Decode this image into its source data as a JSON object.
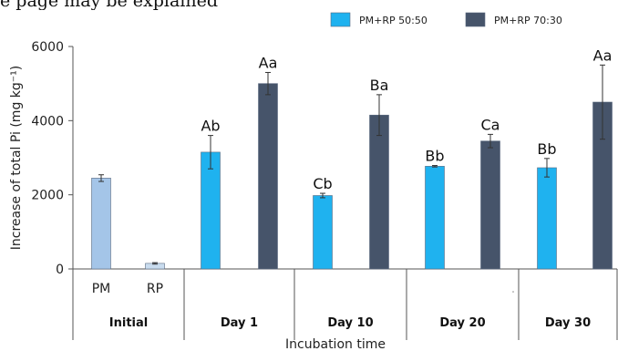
{
  "caption_fragment": "e page may be explained",
  "chart_data": {
    "type": "bar",
    "xlabel": "Incubation time",
    "ylabel": "Increase of total Pi (mg kg⁻¹)",
    "ylim": [
      0,
      6000
    ],
    "yticks": [
      0,
      2000,
      4000,
      6000
    ],
    "legend_position": "top-right",
    "colors": {
      "PM": "#a4c5e8",
      "RP": "#c9dcef",
      "PM+RP 50:50": "#1fb2ef",
      "PM+RP 70:30": "#46546a",
      "error_bar": "#333333",
      "axis": "#555555"
    },
    "legend": [
      {
        "name": "PM+RP 50:50",
        "color": "#1fb2ef"
      },
      {
        "name": "PM+RP 70:30",
        "color": "#46546a"
      }
    ],
    "groups": [
      {
        "label": "Initial",
        "bars": [
          {
            "series": "PM",
            "sublabel": "PM",
            "value": 2450,
            "error": 90,
            "label": ""
          },
          {
            "series": "RP",
            "sublabel": "RP",
            "value": 150,
            "error": 20,
            "label": ""
          }
        ]
      },
      {
        "label": "Day 1",
        "bars": [
          {
            "series": "PM+RP 50:50",
            "value": 3150,
            "error": 450,
            "label": "Ab"
          },
          {
            "series": "PM+RP 70:30",
            "value": 5000,
            "error": 300,
            "label": "Aa"
          }
        ]
      },
      {
        "label": "Day 10",
        "bars": [
          {
            "series": "PM+RP 50:50",
            "value": 1980,
            "error": 60,
            "label": "Cb"
          },
          {
            "series": "PM+RP 70:30",
            "value": 4150,
            "error": 550,
            "label": "Ba"
          }
        ]
      },
      {
        "label": "Day 20",
        "bars": [
          {
            "series": "PM+RP 50:50",
            "value": 2770,
            "error": 20,
            "label": "Bb"
          },
          {
            "series": "PM+RP 70:30",
            "value": 3450,
            "error": 180,
            "label": "Ca"
          }
        ]
      },
      {
        "label": "Day 30",
        "bars": [
          {
            "series": "PM+RP 50:50",
            "value": 2730,
            "error": 250,
            "label": "Bb"
          },
          {
            "series": "PM+RP 70:30",
            "value": 4500,
            "error": 1000,
            "label": "Aa"
          }
        ]
      }
    ]
  }
}
